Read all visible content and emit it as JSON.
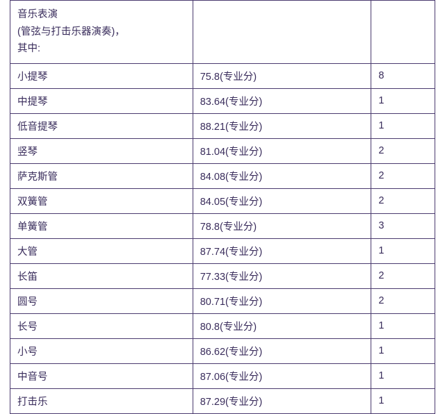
{
  "table": {
    "border_color": "#4a3a6e",
    "text_color": "#3a2d5c",
    "background_color": "#ffffff",
    "font_size": 14.5,
    "column_widths": [
      "43%",
      "42%",
      "15%"
    ],
    "header": {
      "line1": "音乐表演",
      "line2": "(管弦与打击乐器演奏)，",
      "line3": "其中:"
    },
    "score_suffix": "(专业分)",
    "rows": [
      {
        "instrument": "小提琴",
        "score": "75.8",
        "count": "8"
      },
      {
        "instrument": "中提琴",
        "score": "83.64",
        "count": "1"
      },
      {
        "instrument": "低音提琴",
        "score": "88.21",
        "count": "1"
      },
      {
        "instrument": "竖琴",
        "score": "81.04",
        "count": "2"
      },
      {
        "instrument": "萨克斯管",
        "score": "84.08",
        "count": "2"
      },
      {
        "instrument": "双簧管",
        "score": "84.05",
        "count": "2"
      },
      {
        "instrument": "单簧管",
        "score": "78.8",
        "count": "3"
      },
      {
        "instrument": "大管",
        "score": "87.74",
        "count": "1"
      },
      {
        "instrument": "长笛",
        "score": "77.33",
        "count": "2"
      },
      {
        "instrument": "圆号",
        "score": "80.71",
        "count": "2"
      },
      {
        "instrument": "长号",
        "score": "80.8",
        "count": "1"
      },
      {
        "instrument": "小号",
        "score": "86.62",
        "count": "1"
      },
      {
        "instrument": "中音号",
        "score": "87.06",
        "count": "1"
      },
      {
        "instrument": "打击乐",
        "score": "87.29",
        "count": "1"
      }
    ]
  }
}
